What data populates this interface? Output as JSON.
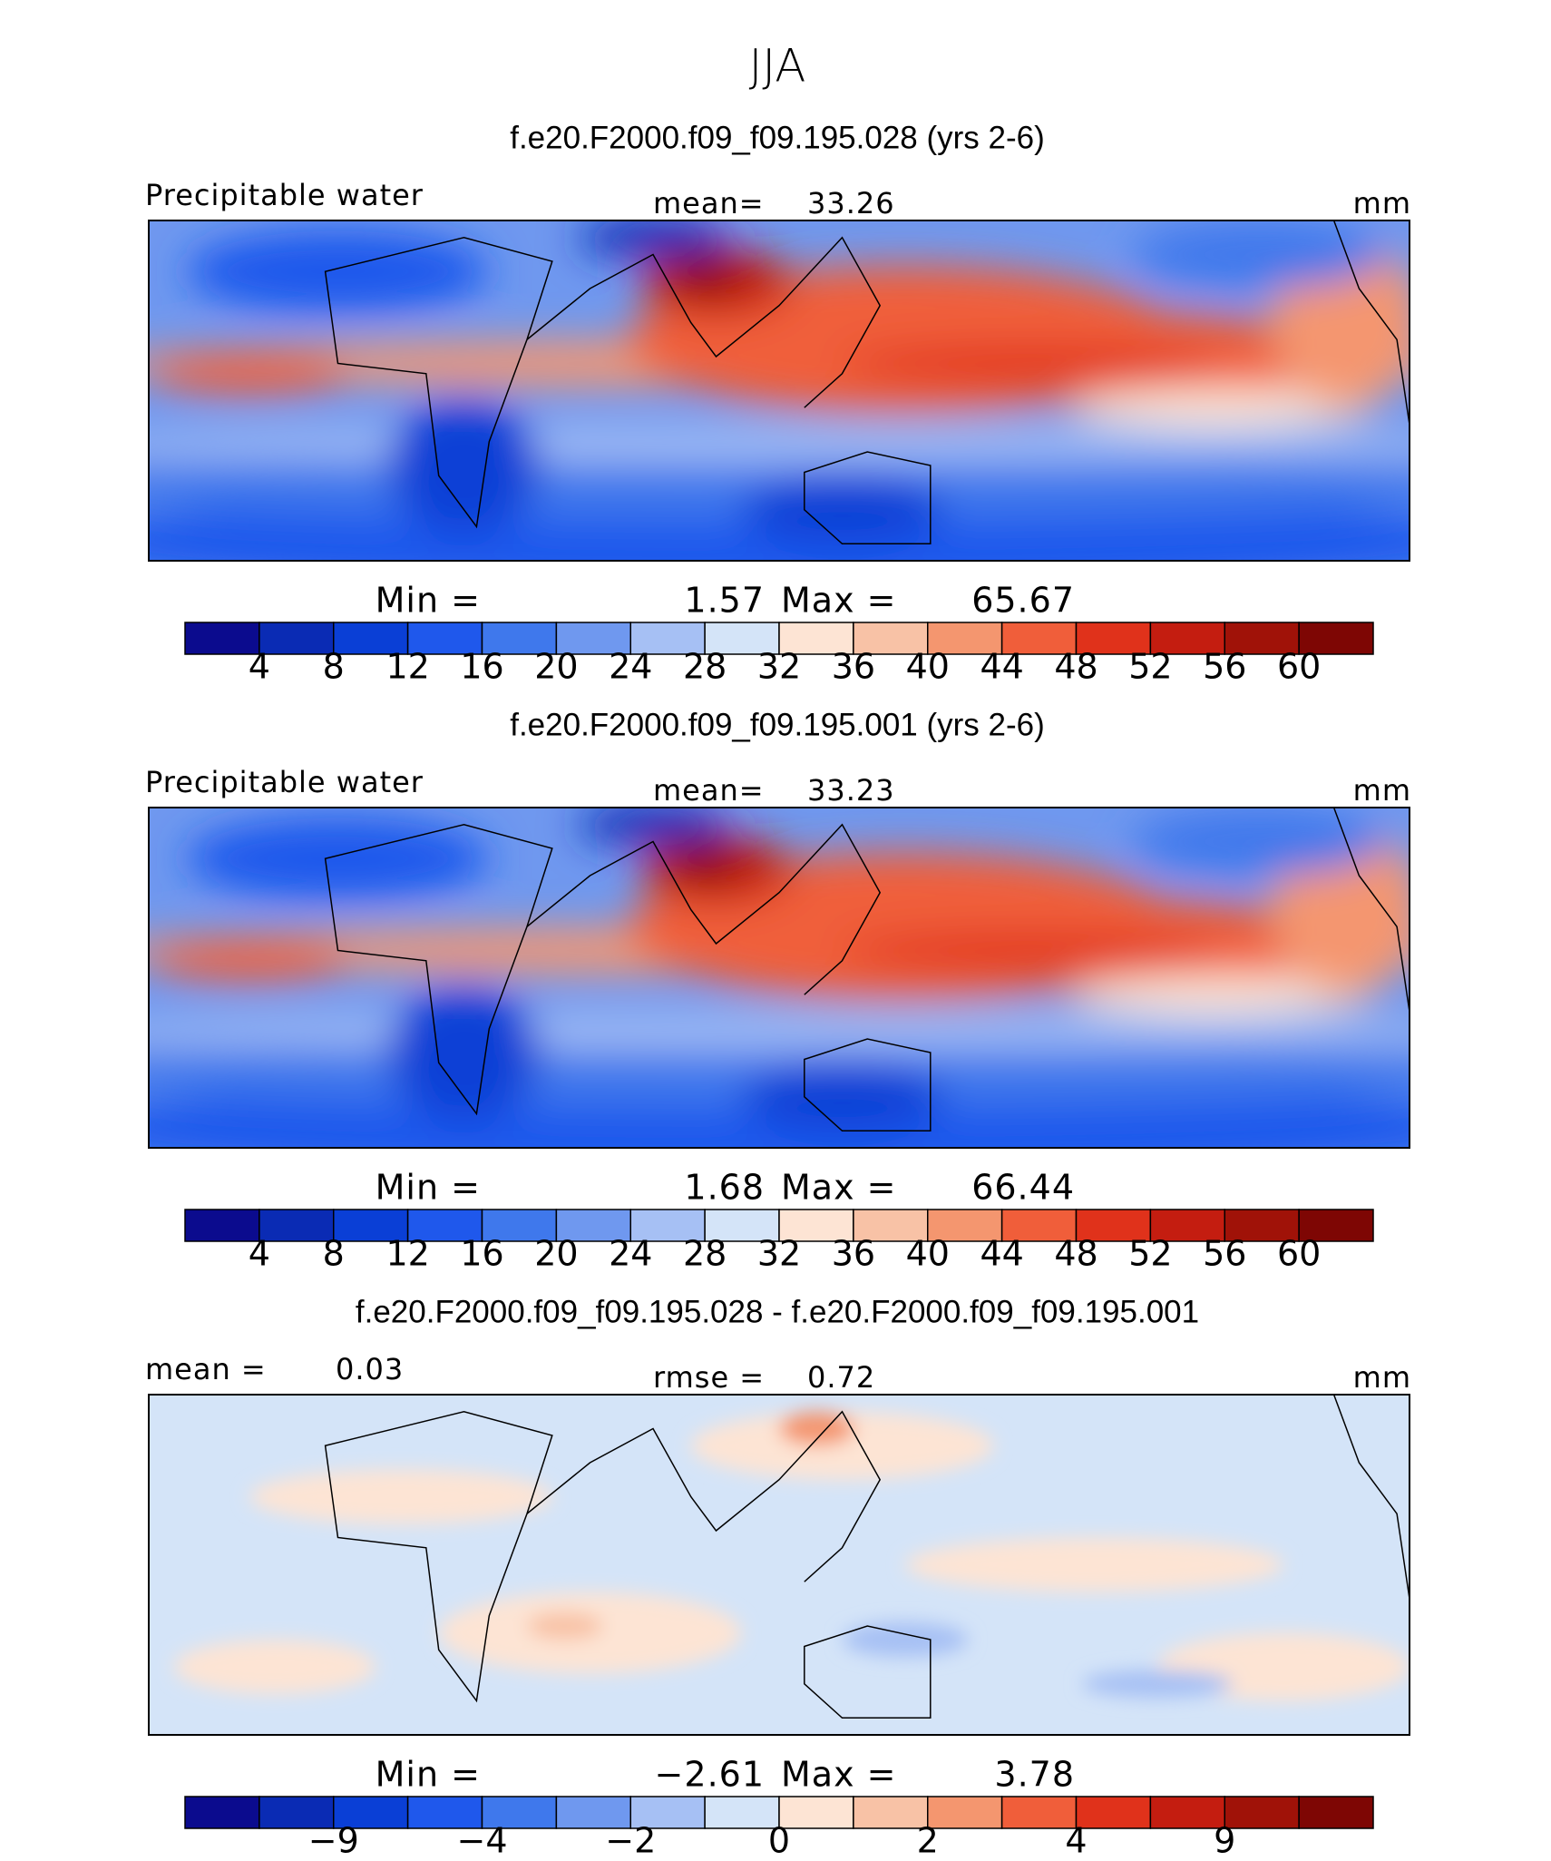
{
  "title": "JJA",
  "panels": [
    {
      "subtitle": "f.e20.F2000.f09_f09.195.028 (yrs 2-6)",
      "left_label": "Precipitable water",
      "center_label": "mean=",
      "center_value": "33.26",
      "units": "mm",
      "min_label": "Min =",
      "min_value": "1.57",
      "max_label": "Max =",
      "max_value": "65.67",
      "colorbar": {
        "colors": [
          "#0b0b8e",
          "#0a2bb4",
          "#0a3fd6",
          "#1f58ec",
          "#3f78ec",
          "#6f98ef",
          "#a6c0f4",
          "#d4e4f8",
          "#fde4d4",
          "#f8c2a6",
          "#f4966f",
          "#f05e3a",
          "#e0321b",
          "#c41d10",
          "#a01208",
          "#7e0604"
        ],
        "labels": [
          "4",
          "8",
          "12",
          "16",
          "20",
          "24",
          "28",
          "32",
          "36",
          "40",
          "44",
          "48",
          "52",
          "56",
          "60"
        ]
      }
    },
    {
      "subtitle": "f.e20.F2000.f09_f09.195.001 (yrs 2-6)",
      "left_label": "Precipitable water",
      "center_label": "mean=",
      "center_value": "33.23",
      "units": "mm",
      "min_label": "Min =",
      "min_value": "1.68",
      "max_label": "Max =",
      "max_value": "66.44",
      "colorbar": {
        "colors": [
          "#0b0b8e",
          "#0a2bb4",
          "#0a3fd6",
          "#1f58ec",
          "#3f78ec",
          "#6f98ef",
          "#a6c0f4",
          "#d4e4f8",
          "#fde4d4",
          "#f8c2a6",
          "#f4966f",
          "#f05e3a",
          "#e0321b",
          "#c41d10",
          "#a01208",
          "#7e0604"
        ],
        "labels": [
          "4",
          "8",
          "12",
          "16",
          "20",
          "24",
          "28",
          "32",
          "36",
          "40",
          "44",
          "48",
          "52",
          "56",
          "60"
        ]
      }
    },
    {
      "subtitle": "f.e20.F2000.f09_f09.195.028 - f.e20.F2000.f09_f09.195.001",
      "left_label": "mean =",
      "left_value": "0.03",
      "center_label": "rmse =",
      "center_value": "0.72",
      "units": "mm",
      "min_label": "Min =",
      "min_value": "−2.61",
      "max_label": "Max =",
      "max_value": "3.78",
      "colorbar": {
        "colors": [
          "#0b0b8e",
          "#0a2bb4",
          "#0a3fd6",
          "#1f58ec",
          "#3f78ec",
          "#6f98ef",
          "#a6c0f4",
          "#d4e4f8",
          "#fde4d4",
          "#f8c2a6",
          "#f4966f",
          "#f05e3a",
          "#e0321b",
          "#c41d10",
          "#a01208",
          "#7e0604"
        ],
        "labels": [
          "−9",
          "−4",
          "−2",
          "0",
          "2",
          "4",
          "9"
        ]
      }
    }
  ]
}
